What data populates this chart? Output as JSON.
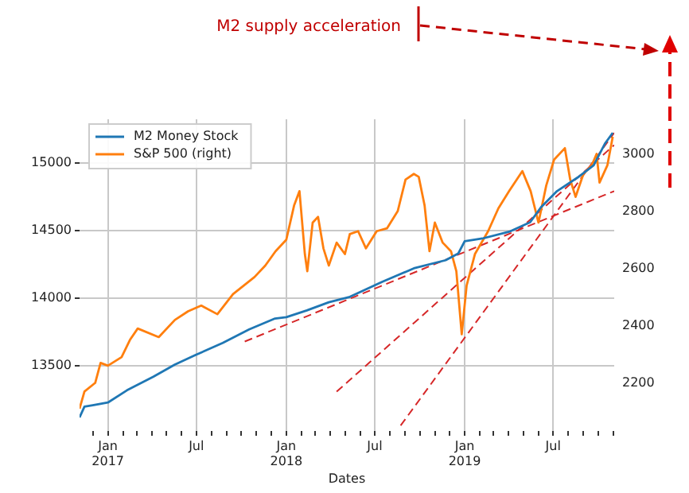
{
  "chart_data": {
    "type": "line",
    "xlabel": "Dates",
    "annotations": [
      "M2 supply acceleration"
    ],
    "xlim": [
      "2016-11-04",
      "2019-11-03"
    ],
    "xticks": [
      {
        "value": "2016-12-01",
        "label": null
      },
      {
        "value": "2017-01-01",
        "label": "Jan\n2017"
      },
      {
        "value": "2017-02-01",
        "label": null
      },
      {
        "value": "2017-03-01",
        "label": null
      },
      {
        "value": "2017-04-01",
        "label": null
      },
      {
        "value": "2017-05-01",
        "label": null
      },
      {
        "value": "2017-06-01",
        "label": null
      },
      {
        "value": "2017-07-01",
        "label": "Jul"
      },
      {
        "value": "2017-08-01",
        "label": null
      },
      {
        "value": "2017-09-01",
        "label": null
      },
      {
        "value": "2017-10-01",
        "label": null
      },
      {
        "value": "2017-11-01",
        "label": null
      },
      {
        "value": "2017-12-01",
        "label": null
      },
      {
        "value": "2018-01-01",
        "label": "Jan\n2018"
      },
      {
        "value": "2018-02-01",
        "label": null
      },
      {
        "value": "2018-03-01",
        "label": null
      },
      {
        "value": "2018-04-01",
        "label": null
      },
      {
        "value": "2018-05-01",
        "label": null
      },
      {
        "value": "2018-06-01",
        "label": null
      },
      {
        "value": "2018-07-01",
        "label": "Jul"
      },
      {
        "value": "2018-08-01",
        "label": null
      },
      {
        "value": "2018-09-01",
        "label": null
      },
      {
        "value": "2018-10-01",
        "label": null
      },
      {
        "value": "2018-11-01",
        "label": null
      },
      {
        "value": "2018-12-01",
        "label": null
      },
      {
        "value": "2019-01-01",
        "label": "Jan\n2019"
      },
      {
        "value": "2019-02-01",
        "label": null
      },
      {
        "value": "2019-03-01",
        "label": null
      },
      {
        "value": "2019-04-01",
        "label": null
      },
      {
        "value": "2019-05-01",
        "label": null
      },
      {
        "value": "2019-06-01",
        "label": null
      },
      {
        "value": "2019-07-01",
        "label": "Jul"
      },
      {
        "value": "2019-08-01",
        "label": null
      },
      {
        "value": "2019-09-01",
        "label": null
      },
      {
        "value": "2019-10-01",
        "label": null
      },
      {
        "value": "2019-11-01",
        "label": null
      }
    ],
    "ylim": [
      13020,
      15320
    ],
    "yticks": [
      13500,
      14000,
      14500,
      15000
    ],
    "y2lim": [
      2032,
      3121
    ],
    "y2ticks": [
      2200,
      2400,
      2600,
      2800,
      3000
    ],
    "grid": true,
    "legend": "top left",
    "series": [
      {
        "name": "M2 Money Stock",
        "color": "#1f77b4",
        "x": [
          "2016-11-04",
          "2016-11-14",
          "2016-12-01",
          "2017-01-01",
          "2017-02-09",
          "2017-04-04",
          "2017-05-18",
          "2017-06-29",
          "2017-08-24",
          "2017-10-17",
          "2017-12-09",
          "2018-01-01",
          "2018-02-12",
          "2018-03-29",
          "2018-05-11",
          "2018-07-16",
          "2018-09-19",
          "2018-11-23",
          "2018-12-19",
          "2019-01-01",
          "2019-02-06",
          "2019-04-02",
          "2019-05-15",
          "2019-06-06",
          "2019-07-09",
          "2019-08-20",
          "2019-09-22",
          "2019-10-15",
          "2019-10-31"
        ],
        "values": [
          13120,
          13200,
          13210,
          13230,
          13320,
          13420,
          13510,
          13580,
          13670,
          13770,
          13850,
          13860,
          13910,
          13970,
          14010,
          14120,
          14220,
          14280,
          14330,
          14420,
          14440,
          14490,
          14560,
          14670,
          14790,
          14890,
          14980,
          15140,
          15220
        ]
      },
      {
        "name": "S&P 500 (right)",
        "color": "#ff7f0e",
        "axis": "y2",
        "x": [
          "2016-11-04",
          "2016-11-14",
          "2016-12-06",
          "2016-12-17",
          "2017-01-01",
          "2017-01-29",
          "2017-02-15",
          "2017-03-03",
          "2017-04-15",
          "2017-05-18",
          "2017-06-14",
          "2017-07-11",
          "2017-08-13",
          "2017-09-14",
          "2017-10-28",
          "2017-11-19",
          "2017-12-10",
          "2018-01-01",
          "2018-01-17",
          "2018-01-28",
          "2018-02-08",
          "2018-02-13",
          "2018-02-24",
          "2018-03-07",
          "2018-03-18",
          "2018-03-29",
          "2018-04-14",
          "2018-05-01",
          "2018-05-11",
          "2018-05-28",
          "2018-06-13",
          "2018-07-05",
          "2018-07-26",
          "2018-08-17",
          "2018-09-02",
          "2018-09-19",
          "2018-09-29",
          "2018-10-11",
          "2018-10-21",
          "2018-11-01",
          "2018-11-17",
          "2018-12-04",
          "2018-12-15",
          "2018-12-26",
          "2019-01-05",
          "2019-01-22",
          "2019-02-18",
          "2019-03-11",
          "2019-04-02",
          "2019-04-29",
          "2019-05-16",
          "2019-06-01",
          "2019-06-17",
          "2019-07-03",
          "2019-07-25",
          "2019-08-05",
          "2019-08-16",
          "2019-09-01",
          "2019-09-18",
          "2019-09-28",
          "2019-10-04",
          "2019-10-20",
          "2019-10-31"
        ],
        "values": [
          2110,
          2170,
          2200,
          2270,
          2260,
          2290,
          2350,
          2390,
          2360,
          2420,
          2450,
          2470,
          2440,
          2510,
          2570,
          2610,
          2660,
          2700,
          2820,
          2870,
          2650,
          2590,
          2760,
          2780,
          2670,
          2610,
          2690,
          2650,
          2720,
          2730,
          2670,
          2730,
          2740,
          2800,
          2910,
          2930,
          2920,
          2820,
          2660,
          2760,
          2690,
          2660,
          2590,
          2370,
          2540,
          2650,
          2730,
          2810,
          2870,
          2940,
          2870,
          2760,
          2890,
          2980,
          3020,
          2910,
          2850,
          2930,
          2960,
          3000,
          2900,
          2960,
          3060
        ]
      },
      {
        "color": "#d62728",
        "line_style": "dashed",
        "x": [
          "2017-10-08",
          "2019-11-03"
        ],
        "values": [
          13680,
          14790
        ]
      },
      {
        "color": "#d62728",
        "line_style": "dashed",
        "x": [
          "2018-04-14",
          "2019-11-03"
        ],
        "values": [
          13310,
          15130
        ]
      },
      {
        "color": "#d62728",
        "line_style": "dashed",
        "x": [
          "2018-08-23",
          "2019-11-03"
        ],
        "values": [
          13060,
          15220
        ]
      }
    ]
  }
}
